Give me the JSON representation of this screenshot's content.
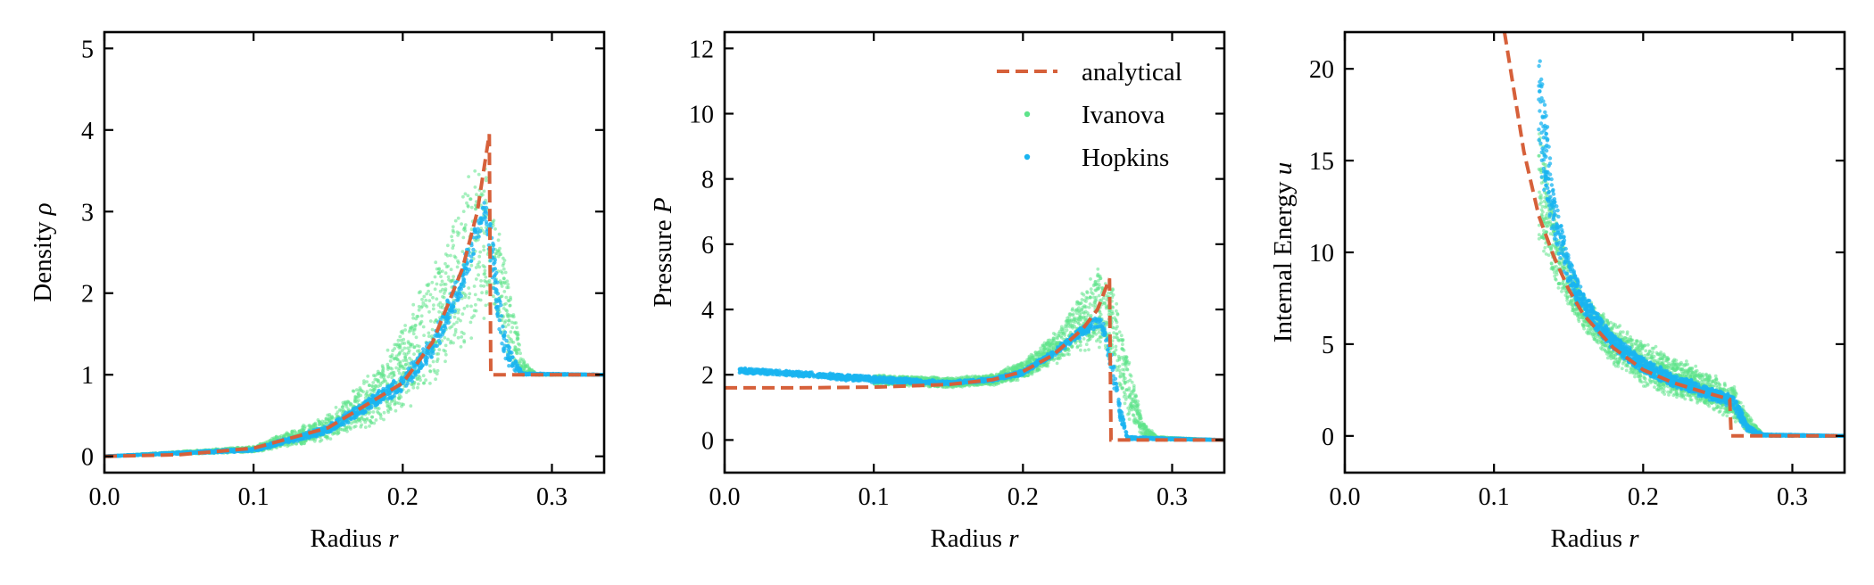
{
  "colors": {
    "analytical": "#d6603a",
    "ivanova": "#5ee38a",
    "hopkins": "#19b4f0"
  },
  "legend": {
    "analytical": "analytical",
    "ivanova": "Ivanova",
    "hopkins": "Hopkins"
  },
  "chart_data": [
    {
      "type": "scatter",
      "xlabel": "Radius r",
      "ylabel": "Density ρ",
      "xlim": [
        0.0,
        0.335
      ],
      "ylim": [
        -0.2,
        5.2
      ],
      "xticks": [
        "0.0",
        "0.1",
        "0.2",
        "0.3"
      ],
      "yticks": [
        "0",
        "1",
        "2",
        "3",
        "4",
        "5"
      ],
      "series": [
        {
          "name": "analytical",
          "style": "dashed-line",
          "x": [
            0.0,
            0.05,
            0.1,
            0.15,
            0.2,
            0.22,
            0.24,
            0.25,
            0.258,
            0.259,
            0.335
          ],
          "y": [
            0.0,
            0.02,
            0.1,
            0.35,
            0.9,
            1.4,
            2.3,
            3.0,
            3.95,
            1.0,
            1.0
          ]
        },
        {
          "name": "Ivanova",
          "style": "scatter-band",
          "x": [
            0.0,
            0.1,
            0.15,
            0.18,
            0.2,
            0.22,
            0.24,
            0.25,
            0.26,
            0.27,
            0.28,
            0.29,
            0.335
          ],
          "y_low": [
            0.0,
            0.05,
            0.2,
            0.4,
            0.6,
            0.9,
            1.3,
            1.6,
            1.9,
            1.2,
            1.0,
            1.0,
            1.0
          ],
          "y_high": [
            0.0,
            0.12,
            0.5,
            1.0,
            1.6,
            2.3,
            3.2,
            3.7,
            3.3,
            2.3,
            1.2,
            1.0,
            1.0
          ]
        },
        {
          "name": "Hopkins",
          "style": "scatter-band",
          "x": [
            0.0,
            0.1,
            0.15,
            0.2,
            0.22,
            0.24,
            0.25,
            0.255,
            0.26,
            0.265,
            0.27,
            0.28,
            0.335
          ],
          "y_low": [
            0.0,
            0.06,
            0.28,
            0.8,
            1.2,
            2.0,
            2.6,
            2.9,
            2.2,
            1.4,
            1.1,
            1.0,
            1.0
          ],
          "y_high": [
            0.0,
            0.1,
            0.38,
            1.0,
            1.5,
            2.35,
            2.95,
            3.2,
            2.8,
            2.0,
            1.4,
            1.02,
            1.0
          ]
        }
      ]
    },
    {
      "type": "scatter",
      "xlabel": "Radius r",
      "ylabel": "Pressure P",
      "xlim": [
        0.0,
        0.335
      ],
      "ylim": [
        -1.0,
        12.5
      ],
      "xticks": [
        "0.0",
        "0.1",
        "0.2",
        "0.3"
      ],
      "yticks": [
        "0",
        "2",
        "4",
        "6",
        "8",
        "10",
        "12"
      ],
      "legend_position": "top-right",
      "series": [
        {
          "name": "analytical",
          "style": "dashed-line",
          "x": [
            0.0,
            0.05,
            0.1,
            0.15,
            0.18,
            0.2,
            0.22,
            0.24,
            0.25,
            0.258,
            0.259,
            0.335
          ],
          "y": [
            1.6,
            1.6,
            1.62,
            1.7,
            1.85,
            2.1,
            2.6,
            3.4,
            4.0,
            4.95,
            0.0,
            0.0
          ]
        },
        {
          "name": "Ivanova",
          "style": "scatter-band",
          "x": [
            0.1,
            0.15,
            0.18,
            0.2,
            0.22,
            0.24,
            0.25,
            0.26,
            0.27,
            0.28,
            0.29,
            0.335
          ],
          "y_low": [
            1.7,
            1.6,
            1.7,
            1.9,
            2.3,
            2.8,
            3.0,
            2.5,
            0.7,
            0.1,
            0.0,
            0.0
          ],
          "y_high": [
            2.0,
            1.9,
            2.0,
            2.4,
            3.2,
            4.6,
            5.2,
            4.8,
            2.6,
            0.6,
            0.1,
            0.0
          ]
        },
        {
          "name": "Hopkins",
          "style": "scatter-band",
          "x": [
            0.01,
            0.05,
            0.1,
            0.15,
            0.18,
            0.2,
            0.22,
            0.24,
            0.25,
            0.255,
            0.26,
            0.265,
            0.27,
            0.335
          ],
          "y_low": [
            2.05,
            1.95,
            1.75,
            1.7,
            1.8,
            2.0,
            2.55,
            3.2,
            3.45,
            3.1,
            1.8,
            0.6,
            0.02,
            0.0
          ],
          "y_high": [
            2.2,
            2.1,
            1.95,
            1.8,
            1.9,
            2.15,
            2.75,
            3.5,
            3.85,
            3.6,
            2.6,
            1.2,
            0.1,
            0.0
          ]
        }
      ]
    },
    {
      "type": "scatter",
      "xlabel": "Radius r",
      "ylabel": "Internal Energy u",
      "xlim": [
        0.0,
        0.335
      ],
      "ylim": [
        -2.0,
        22.0
      ],
      "xticks": [
        "0.0",
        "0.1",
        "0.2",
        "0.3"
      ],
      "yticks": [
        "0",
        "5",
        "10",
        "15",
        "20"
      ],
      "series": [
        {
          "name": "analytical",
          "style": "dashed-line",
          "x": [
            0.107,
            0.12,
            0.13,
            0.14,
            0.15,
            0.16,
            0.18,
            0.2,
            0.22,
            0.24,
            0.258,
            0.259,
            0.335
          ],
          "y": [
            22.0,
            15.5,
            12.0,
            9.8,
            8.0,
            6.6,
            4.8,
            3.6,
            2.9,
            2.4,
            2.0,
            0.0,
            0.0
          ]
        },
        {
          "name": "Ivanova",
          "style": "scatter-band",
          "x": [
            0.13,
            0.14,
            0.15,
            0.16,
            0.18,
            0.2,
            0.22,
            0.24,
            0.26,
            0.27,
            0.28,
            0.335
          ],
          "y_low": [
            10.5,
            8.5,
            7.0,
            5.8,
            3.9,
            2.9,
            2.2,
            1.7,
            1.0,
            0.2,
            0.0,
            0.0
          ],
          "y_high": [
            17.5,
            12.5,
            9.5,
            7.5,
            6.2,
            5.1,
            4.2,
            3.6,
            2.8,
            1.2,
            0.1,
            0.0
          ]
        },
        {
          "name": "Hopkins",
          "style": "scatter-band",
          "x": [
            0.13,
            0.14,
            0.15,
            0.16,
            0.18,
            0.2,
            0.22,
            0.24,
            0.26,
            0.265,
            0.27,
            0.28,
            0.335
          ],
          "y_low": [
            15.0,
            10.5,
            8.0,
            6.5,
            4.6,
            3.4,
            2.7,
            2.1,
            1.6,
            0.8,
            0.2,
            0.0,
            0.0
          ],
          "y_high": [
            21.5,
            13.5,
            9.8,
            7.8,
            5.5,
            4.2,
            3.4,
            2.8,
            2.2,
            1.6,
            0.6,
            0.1,
            0.0
          ]
        }
      ]
    }
  ]
}
